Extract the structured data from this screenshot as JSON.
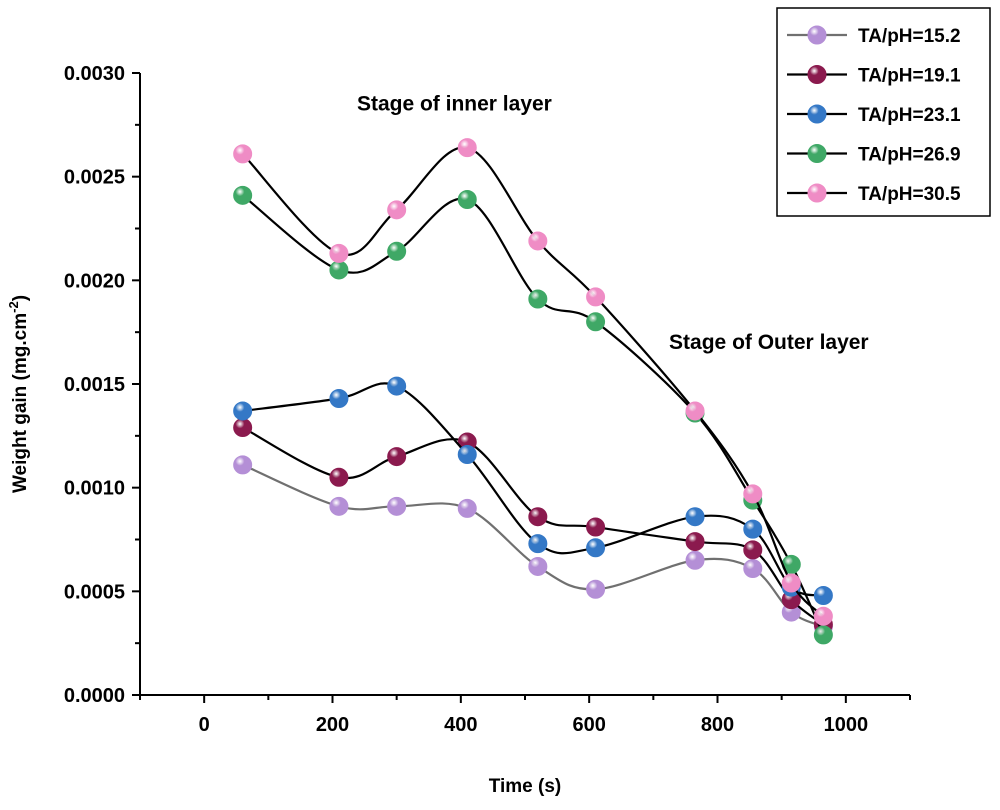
{
  "chart_data": {
    "type": "line",
    "xlabel": "Time (s)",
    "ylabel_main": "Weight gain (mg.cm",
    "ylabel_sup": "-2",
    "ylabel_close": ")",
    "xlim": [
      -100,
      1100
    ],
    "ylim": [
      0,
      0.003
    ],
    "xticks": [
      0,
      200,
      400,
      600,
      800,
      1000
    ],
    "xtick_labels": [
      "0",
      "200",
      "400",
      "600",
      "800",
      "1000"
    ],
    "yticks": [
      0,
      0.0005,
      0.001,
      0.0015,
      0.002,
      0.0025,
      0.003
    ],
    "ytick_labels": [
      "0.0000",
      "0.0005",
      "0.0010",
      "0.0015",
      "0.0020",
      "0.0025",
      "0.0030"
    ],
    "legend_position": "top-right, outside",
    "annotations": [
      {
        "text": "Stage of inner layer",
        "x": 390,
        "y": 0.00282
      },
      {
        "text": "Stage of  Outer layer",
        "x": 880,
        "y": 0.00167
      }
    ],
    "x": [
      60,
      210,
      300,
      410,
      520,
      610,
      765,
      855,
      915,
      965
    ],
    "series": [
      {
        "name": "TA/pH=15.2",
        "color": "#b48fd6",
        "line_color": "#707070",
        "values": [
          0.00111,
          0.00091,
          0.00091,
          0.0009,
          0.00062,
          0.00051,
          0.00065,
          0.00061,
          0.0004,
          0.00033
        ]
      },
      {
        "name": "TA/pH=19.1",
        "color": "#8b1a4e",
        "line_color": "#000000",
        "values": [
          0.00129,
          0.00105,
          0.00115,
          0.00122,
          0.00086,
          0.00081,
          0.00074,
          0.0007,
          0.00046,
          0.00034
        ]
      },
      {
        "name": "TA/pH=23.1",
        "color": "#3478c6",
        "line_color": "#000000",
        "values": [
          0.00137,
          0.00143,
          0.00149,
          0.00116,
          0.00073,
          0.00071,
          0.00086,
          0.0008,
          0.00052,
          0.00048
        ]
      },
      {
        "name": "TA/pH=26.9",
        "color": "#3fa866",
        "line_color": "#000000",
        "values": [
          0.00241,
          0.00205,
          0.00214,
          0.00239,
          0.00191,
          0.0018,
          0.00136,
          0.00094,
          0.00063,
          0.00029
        ]
      },
      {
        "name": "TA/pH=30.5",
        "color": "#ef8cc5",
        "line_color": "#000000",
        "values": [
          0.00261,
          0.00213,
          0.00234,
          0.00264,
          0.00219,
          0.00192,
          0.00137,
          0.00097,
          0.00054,
          0.00038
        ]
      }
    ]
  }
}
